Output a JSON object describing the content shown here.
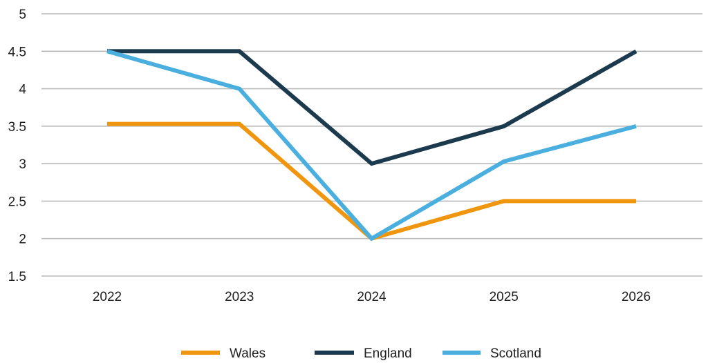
{
  "chart_data": {
    "type": "line",
    "title": "",
    "xlabel": "",
    "ylabel": "",
    "categories": [
      "2022",
      "2023",
      "2024",
      "2025",
      "2026"
    ],
    "ylim": [
      1.5,
      5
    ],
    "yticks": [
      1.5,
      2,
      2.5,
      3,
      3.5,
      4,
      4.5,
      5
    ],
    "ytick_labels": [
      "1.5",
      "2",
      "2.5",
      "3",
      "3.5",
      "4",
      "4.5",
      "5"
    ],
    "grid": true,
    "legend_position": "bottom",
    "series": [
      {
        "name": "Wales",
        "color": "#F0960E",
        "values": [
          3.53,
          3.53,
          2.0,
          2.5,
          2.5
        ]
      },
      {
        "name": "England",
        "color": "#1C3A4E",
        "values": [
          4.5,
          4.5,
          3.0,
          3.5,
          4.5
        ]
      },
      {
        "name": "Scotland",
        "color": "#4AAFDE",
        "values": [
          4.5,
          4.0,
          2.0,
          3.03,
          3.5
        ]
      }
    ]
  }
}
